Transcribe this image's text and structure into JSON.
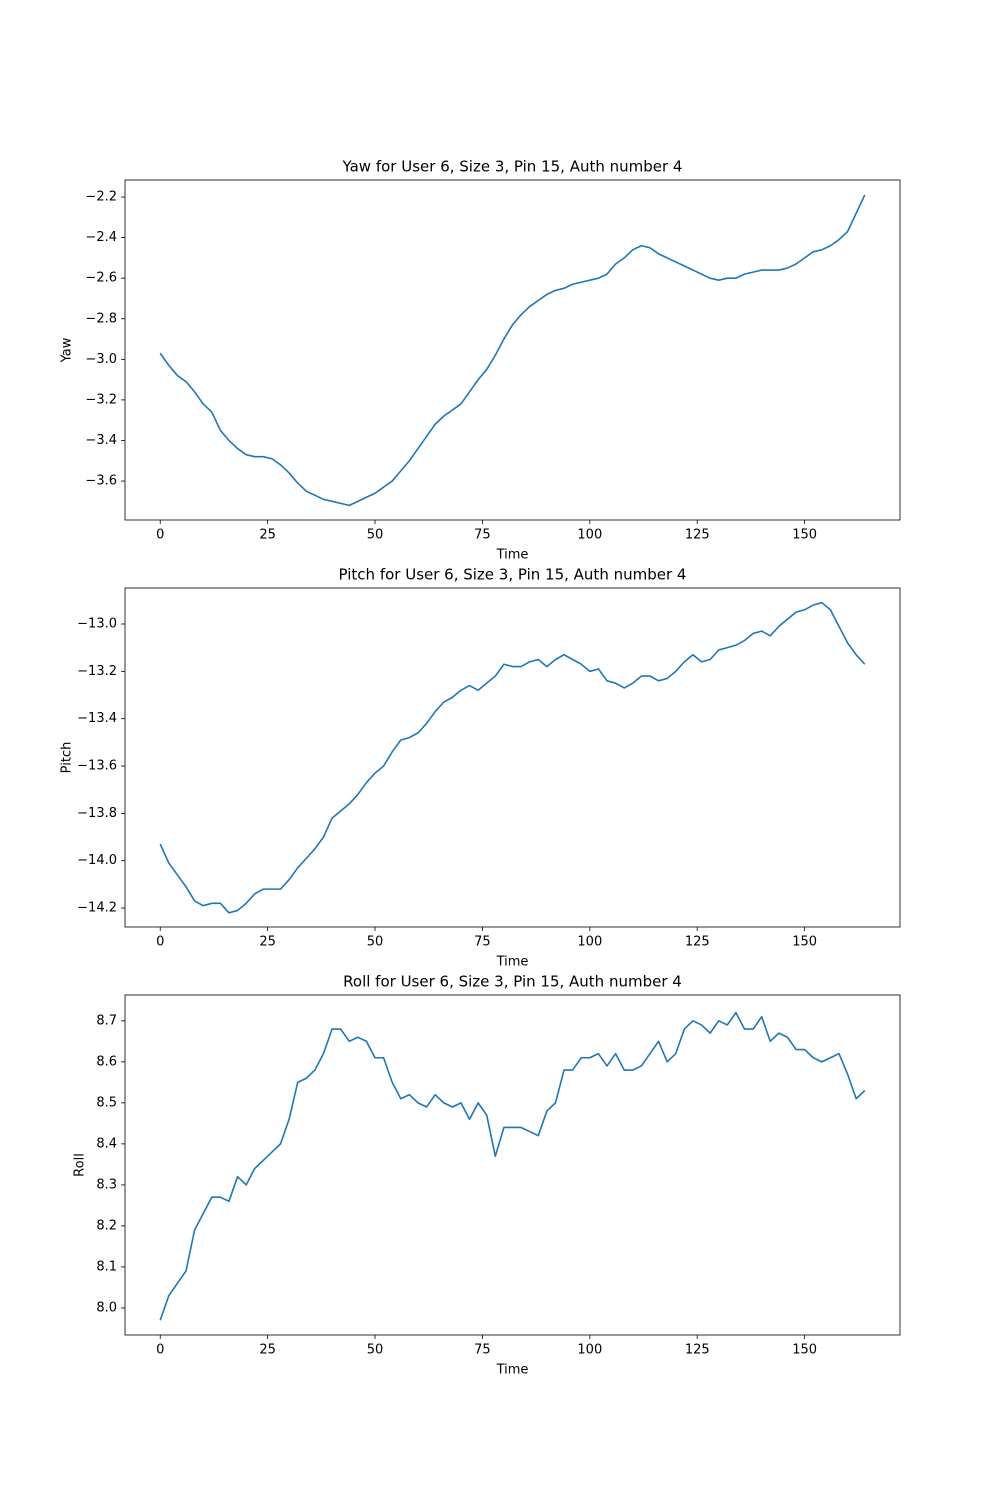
{
  "chart_data": [
    {
      "type": "line",
      "title": "Yaw for User 6, Size 3, Pin 15, Auth number 4",
      "xlabel": "Time",
      "ylabel": "Yaw",
      "color": "#1f77b4",
      "x": [
        0,
        2,
        4,
        6,
        8,
        10,
        12,
        14,
        16,
        18,
        20,
        22,
        24,
        26,
        28,
        30,
        32,
        34,
        36,
        38,
        40,
        42,
        44,
        46,
        48,
        50,
        52,
        54,
        56,
        58,
        60,
        62,
        64,
        66,
        68,
        70,
        72,
        74,
        76,
        78,
        80,
        82,
        84,
        86,
        88,
        90,
        92,
        94,
        96,
        98,
        100,
        102,
        104,
        106,
        108,
        110,
        112,
        114,
        116,
        118,
        120,
        122,
        124,
        126,
        128,
        130,
        132,
        134,
        136,
        138,
        140,
        142,
        144,
        146,
        148,
        150,
        152,
        154,
        156,
        158,
        160,
        162,
        164
      ],
      "values": [
        -2.97,
        -3.03,
        -3.08,
        -3.11,
        -3.16,
        -3.22,
        -3.26,
        -3.35,
        -3.4,
        -3.44,
        -3.47,
        -3.48,
        -3.48,
        -3.49,
        -3.52,
        -3.56,
        -3.61,
        -3.65,
        -3.67,
        -3.69,
        -3.7,
        -3.71,
        -3.72,
        -3.7,
        -3.68,
        -3.66,
        -3.63,
        -3.6,
        -3.55,
        -3.5,
        -3.44,
        -3.38,
        -3.32,
        -3.28,
        -3.25,
        -3.22,
        -3.16,
        -3.1,
        -3.05,
        -2.98,
        -2.9,
        -2.83,
        -2.78,
        -2.74,
        -2.71,
        -2.68,
        -2.66,
        -2.65,
        -2.63,
        -2.62,
        -2.61,
        -2.6,
        -2.58,
        -2.53,
        -2.5,
        -2.46,
        -2.44,
        -2.45,
        -2.48,
        -2.5,
        -2.52,
        -2.54,
        -2.56,
        -2.58,
        -2.6,
        -2.61,
        -2.6,
        -2.6,
        -2.58,
        -2.57,
        -2.56,
        -2.56,
        -2.56,
        -2.55,
        -2.53,
        -2.5,
        -2.47,
        -2.46,
        -2.44,
        -2.41,
        -2.37,
        -2.28,
        -2.19
      ],
      "xlim": [
        -8.2,
        172.2
      ],
      "xticks": [
        0,
        25,
        50,
        75,
        100,
        125,
        150
      ],
      "ylim": [
        -3.792,
        -2.116
      ],
      "yticks": [
        {
          "value": -3.6,
          "label": "−3.6"
        },
        {
          "value": -3.4,
          "label": "−3.4"
        },
        {
          "value": -3.2,
          "label": "−3.2"
        },
        {
          "value": -3.0,
          "label": "−3.0"
        },
        {
          "value": -2.8,
          "label": "−2.8"
        },
        {
          "value": -2.6,
          "label": "−2.6"
        },
        {
          "value": -2.4,
          "label": "−2.4"
        },
        {
          "value": -2.2,
          "label": "−2.2"
        }
      ]
    },
    {
      "type": "line",
      "title": "Pitch for User 6, Size 3, Pin 15, Auth number 4",
      "xlabel": "Time",
      "ylabel": "Pitch",
      "color": "#1f77b4",
      "x": [
        0,
        2,
        4,
        6,
        8,
        10,
        12,
        14,
        16,
        18,
        20,
        22,
        24,
        26,
        28,
        30,
        32,
        34,
        36,
        38,
        40,
        42,
        44,
        46,
        48,
        50,
        52,
        54,
        56,
        58,
        60,
        62,
        64,
        66,
        68,
        70,
        72,
        74,
        76,
        78,
        80,
        82,
        84,
        86,
        88,
        90,
        92,
        94,
        96,
        98,
        100,
        102,
        104,
        106,
        108,
        110,
        112,
        114,
        116,
        118,
        120,
        122,
        124,
        126,
        128,
        130,
        132,
        134,
        136,
        138,
        140,
        142,
        144,
        146,
        148,
        150,
        152,
        154,
        156,
        158,
        160,
        162,
        164
      ],
      "values": [
        -13.93,
        -14.01,
        -14.06,
        -14.11,
        -14.17,
        -14.19,
        -14.18,
        -14.18,
        -14.22,
        -14.21,
        -14.18,
        -14.14,
        -14.12,
        -14.12,
        -14.12,
        -14.08,
        -14.03,
        -13.99,
        -13.95,
        -13.9,
        -13.82,
        -13.79,
        -13.76,
        -13.72,
        -13.67,
        -13.63,
        -13.6,
        -13.54,
        -13.49,
        -13.48,
        -13.46,
        -13.42,
        -13.37,
        -13.33,
        -13.31,
        -13.28,
        -13.26,
        -13.28,
        -13.25,
        -13.22,
        -13.17,
        -13.18,
        -13.18,
        -13.16,
        -13.15,
        -13.18,
        -13.15,
        -13.13,
        -13.15,
        -13.17,
        -13.2,
        -13.19,
        -13.24,
        -13.25,
        -13.27,
        -13.25,
        -13.22,
        -13.22,
        -13.24,
        -13.23,
        -13.2,
        -13.16,
        -13.13,
        -13.16,
        -13.15,
        -13.11,
        -13.1,
        -13.09,
        -13.07,
        -13.04,
        -13.03,
        -13.05,
        -13.01,
        -12.98,
        -12.95,
        -12.94,
        -12.92,
        -12.91,
        -12.94,
        -13.01,
        -13.08,
        -13.13,
        -13.17
      ],
      "xlim": [
        -8.2,
        172.2
      ],
      "xticks": [
        0,
        25,
        50,
        75,
        100,
        125,
        150
      ],
      "ylim": [
        -14.28,
        -12.848
      ],
      "yticks": [
        {
          "value": -14.2,
          "label": "−14.2"
        },
        {
          "value": -14.0,
          "label": "−14.0"
        },
        {
          "value": -13.8,
          "label": "−13.8"
        },
        {
          "value": -13.6,
          "label": "−13.6"
        },
        {
          "value": -13.4,
          "label": "−13.4"
        },
        {
          "value": -13.2,
          "label": "−13.2"
        },
        {
          "value": -13.0,
          "label": "−13.0"
        }
      ]
    },
    {
      "type": "line",
      "title": "Roll for User 6, Size 3, Pin 15, Auth number 4",
      "xlabel": "Time",
      "ylabel": "Roll",
      "color": "#1f77b4",
      "x": [
        0,
        2,
        4,
        6,
        8,
        10,
        12,
        14,
        16,
        18,
        20,
        22,
        24,
        26,
        28,
        30,
        32,
        34,
        36,
        38,
        40,
        42,
        44,
        46,
        48,
        50,
        52,
        54,
        56,
        58,
        60,
        62,
        64,
        66,
        68,
        70,
        72,
        74,
        76,
        78,
        80,
        82,
        84,
        86,
        88,
        90,
        92,
        94,
        96,
        98,
        100,
        102,
        104,
        106,
        108,
        110,
        112,
        114,
        116,
        118,
        120,
        122,
        124,
        126,
        128,
        130,
        132,
        134,
        136,
        138,
        140,
        142,
        144,
        146,
        148,
        150,
        152,
        154,
        156,
        158,
        160,
        162,
        164
      ],
      "values": [
        7.97,
        8.03,
        8.06,
        8.09,
        8.19,
        8.23,
        8.27,
        8.27,
        8.26,
        8.32,
        8.3,
        8.34,
        8.36,
        8.38,
        8.4,
        8.46,
        8.55,
        8.56,
        8.58,
        8.62,
        8.68,
        8.68,
        8.65,
        8.66,
        8.65,
        8.61,
        8.61,
        8.55,
        8.51,
        8.52,
        8.5,
        8.49,
        8.52,
        8.5,
        8.49,
        8.5,
        8.46,
        8.5,
        8.47,
        8.37,
        8.44,
        8.44,
        8.44,
        8.43,
        8.42,
        8.48,
        8.5,
        8.58,
        8.58,
        8.61,
        8.61,
        8.62,
        8.59,
        8.62,
        8.58,
        8.58,
        8.59,
        8.62,
        8.65,
        8.6,
        8.62,
        8.68,
        8.7,
        8.69,
        8.67,
        8.7,
        8.69,
        8.72,
        8.68,
        8.68,
        8.71,
        8.65,
        8.67,
        8.66,
        8.63,
        8.63,
        8.61,
        8.6,
        8.61,
        8.62,
        8.57,
        8.51,
        8.53
      ],
      "xlim": [
        -8.2,
        172.2
      ],
      "xticks": [
        0,
        25,
        50,
        75,
        100,
        125,
        150
      ],
      "ylim": [
        7.934,
        8.763
      ],
      "yticks": [
        {
          "value": 8.0,
          "label": "8.0"
        },
        8.1,
        8.2,
        8.3,
        8.4,
        8.5,
        8.6,
        8.7
      ]
    }
  ]
}
